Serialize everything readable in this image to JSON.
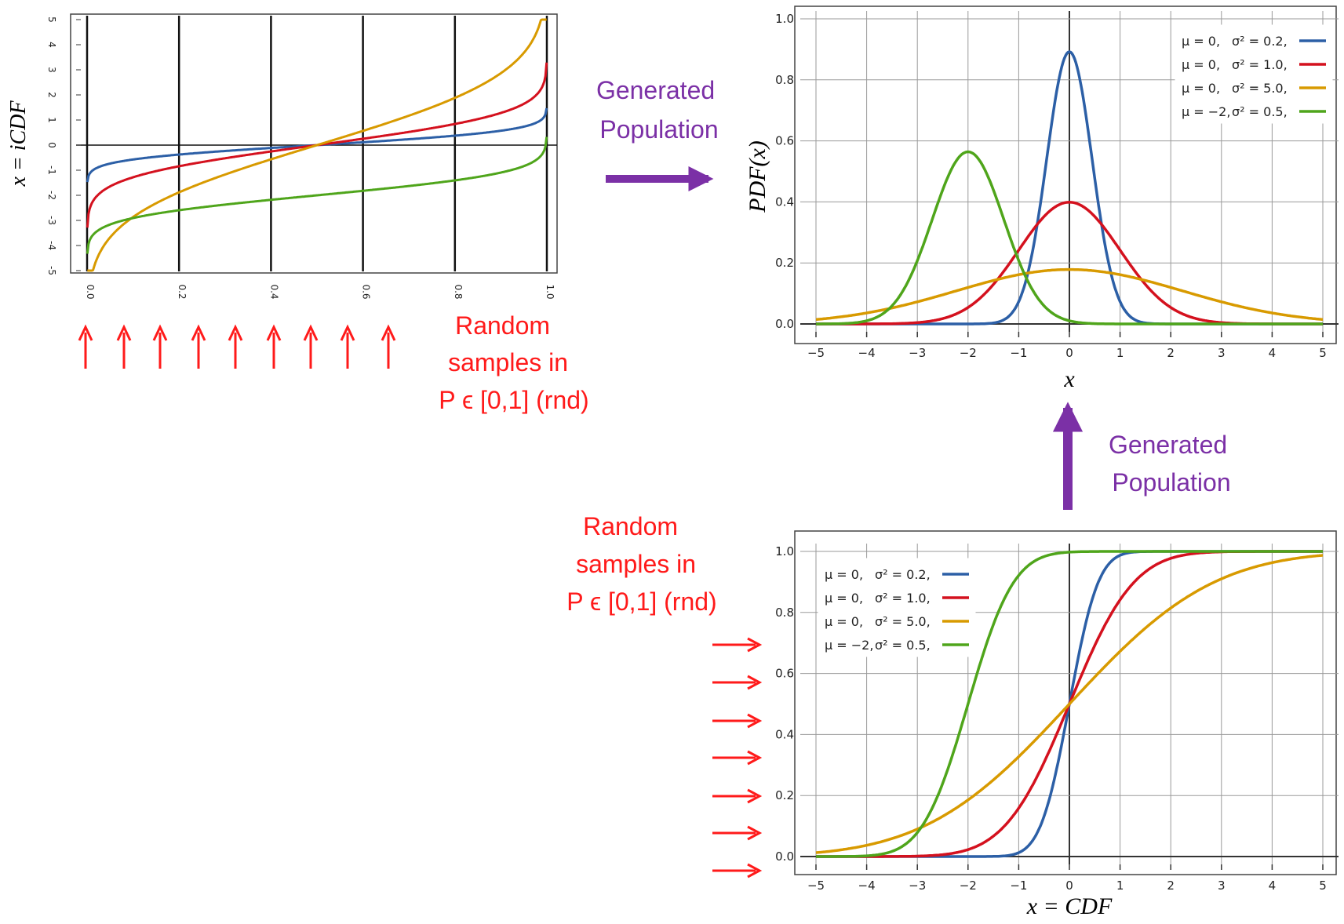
{
  "colors": {
    "blue": "#2c5fa6",
    "red": "#d4111e",
    "orange": "#d89a00",
    "green": "#4fa51b",
    "purple": "#7b30a6",
    "arrow_red": "#ff1a1a"
  },
  "legend": {
    "rows": [
      {
        "mu": "μ = 0,",
        "sigma": "σ² = 0.2,",
        "color": "blue"
      },
      {
        "mu": "μ = 0,",
        "sigma": "σ² = 1.0,",
        "color": "red"
      },
      {
        "mu": "μ = 0,",
        "sigma": "σ² = 5.0,",
        "color": "orange"
      },
      {
        "mu": "μ = −2,",
        "sigma": "σ² = 0.5,",
        "color": "green"
      }
    ]
  },
  "annotations": {
    "generated_population_1": [
      "Generated",
      "Population"
    ],
    "generated_population_2": [
      "Generated",
      "Population"
    ],
    "random_samples_1": [
      "Random",
      "samples in",
      "P ϵ [0,1] (rnd)"
    ],
    "random_samples_2": [
      "Random",
      "samples in",
      "P ϵ [0,1] (rnd)"
    ]
  },
  "chart_data": [
    {
      "id": "icdf",
      "type": "line",
      "ylabel": "x = iCDF",
      "xlabel": "",
      "x_ticks": [
        "0.0",
        "0.2",
        "0.4",
        "0.6",
        "0.8",
        "1.0"
      ],
      "y_ticks": [
        "5",
        "4",
        "3",
        "2",
        "1",
        "0",
        "-1",
        "-2",
        "-3",
        "-4",
        "-5"
      ],
      "xlim": [
        0,
        1
      ],
      "ylim": [
        -5,
        5
      ],
      "axis_orientation": "x tick labels rotated 180°, y tick labels rotated",
      "series": [
        {
          "color": "blue",
          "mu": 0,
          "sigma2": 0.2
        },
        {
          "color": "red",
          "mu": 0,
          "sigma2": 1.0
        },
        {
          "color": "orange",
          "mu": 0,
          "sigma2": 5.0
        },
        {
          "color": "green",
          "mu": -2,
          "sigma2": 0.5
        }
      ]
    },
    {
      "id": "pdf",
      "type": "line",
      "ylabel": "PDF(x)",
      "xlabel": "x",
      "x_ticks": [
        "−5",
        "−4",
        "−3",
        "−2",
        "−1",
        "0",
        "1",
        "2",
        "3",
        "4",
        "5"
      ],
      "y_ticks": [
        "0.0",
        "0.2",
        "0.4",
        "0.6",
        "0.8",
        "1.0"
      ],
      "xlim": [
        -5,
        5
      ],
      "ylim": [
        0,
        1
      ],
      "grid": true,
      "legend_position": "top-right",
      "series": [
        {
          "color": "blue",
          "mu": 0,
          "sigma2": 0.2
        },
        {
          "color": "red",
          "mu": 0,
          "sigma2": 1.0
        },
        {
          "color": "orange",
          "mu": 0,
          "sigma2": 5.0
        },
        {
          "color": "green",
          "mu": -2,
          "sigma2": 0.5
        }
      ]
    },
    {
      "id": "cdf",
      "type": "line",
      "ylabel": "",
      "xlabel": "x = CDF",
      "x_ticks": [
        "−5",
        "−4",
        "−3",
        "−2",
        "−1",
        "0",
        "1",
        "2",
        "3",
        "4",
        "5"
      ],
      "y_ticks": [
        "0.0",
        "0.2",
        "0.4",
        "0.6",
        "0.8",
        "1.0"
      ],
      "xlim": [
        -5,
        5
      ],
      "ylim": [
        0,
        1
      ],
      "grid": true,
      "legend_position": "top-left",
      "series": [
        {
          "color": "blue",
          "mu": 0,
          "sigma2": 0.2
        },
        {
          "color": "red",
          "mu": 0,
          "sigma2": 1.0
        },
        {
          "color": "orange",
          "mu": 0,
          "sigma2": 5.0
        },
        {
          "color": "green",
          "mu": -2,
          "sigma2": 0.5
        }
      ]
    }
  ]
}
